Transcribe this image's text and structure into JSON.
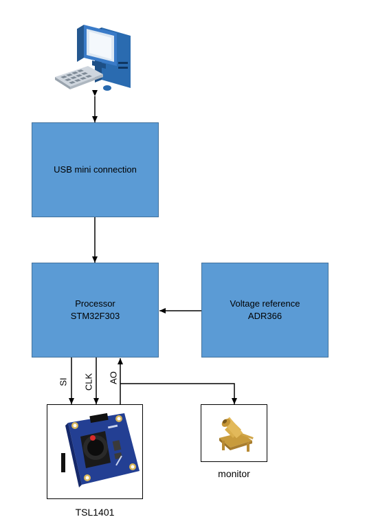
{
  "blocks": {
    "usb": {
      "label": "USB mini connection"
    },
    "processor": {
      "line1": "Processor",
      "line2": "STM32F303"
    },
    "vref": {
      "line1": "Voltage reference",
      "line2": "ADR366"
    }
  },
  "signals": {
    "si": "SI",
    "clk": "CLK",
    "ao": "AO"
  },
  "captions": {
    "sensor": "TSL1401",
    "monitor": "monitor"
  },
  "colors": {
    "block_fill": "#5b9bd5",
    "block_border": "#41719c"
  },
  "icons": {
    "computer": "desktop-computer-icon",
    "sensor": "tsl1401-sensor-board",
    "connector": "sma-connector"
  }
}
